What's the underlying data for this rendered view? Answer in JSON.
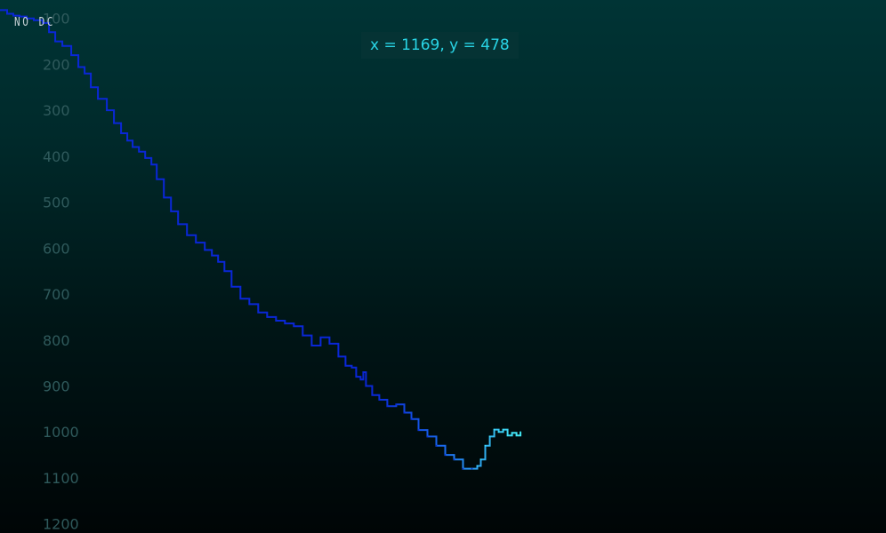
{
  "indicator": {
    "label": "NO DC"
  },
  "readout": {
    "text": "x = 1169, y = 478"
  },
  "colors": {
    "line_start": "#0a27d8",
    "line_mid": "#1a6cf0",
    "line_end": "#42e6f2",
    "tick_text": "#2f5a5c"
  },
  "chart_data": {
    "type": "line",
    "y_axis_reversed": true,
    "ylim": [
      1220,
      60
    ],
    "xlim": [
      0,
      1990
    ],
    "yticks": [
      100,
      200,
      300,
      400,
      500,
      600,
      700,
      800,
      900,
      1000,
      1100,
      1200
    ],
    "series": [
      {
        "x": [
          0,
          16,
          30,
          44,
          60,
          76,
          96,
          110,
          124,
          140,
          160,
          176,
          190,
          204,
          220,
          240,
          256,
          272,
          286,
          298,
          312,
          326,
          340,
          352,
          368,
          384,
          400,
          420,
          440,
          460,
          476,
          490,
          504,
          520,
          540,
          560,
          580,
          600,
          620,
          640,
          660,
          680,
          700,
          720,
          740,
          760,
          776,
          790,
          800,
          810,
          816,
          822,
          836,
          852,
          870,
          890,
          908,
          924,
          940,
          960,
          980,
          1000,
          1020,
          1040,
          1060,
          1072,
          1080,
          1090,
          1100,
          1110,
          1120,
          1130,
          1140,
          1150,
          1160,
          1169
        ],
        "y": [
          82,
          90,
          94,
          96,
          100,
          104,
          110,
          130,
          150,
          160,
          180,
          206,
          220,
          250,
          275,
          300,
          328,
          350,
          366,
          380,
          390,
          404,
          418,
          450,
          490,
          520,
          548,
          572,
          588,
          604,
          616,
          630,
          650,
          684,
          710,
          722,
          740,
          750,
          758,
          764,
          770,
          790,
          812,
          794,
          808,
          836,
          856,
          860,
          880,
          886,
          870,
          900,
          920,
          930,
          944,
          940,
          958,
          972,
          996,
          1010,
          1030,
          1050,
          1060,
          1080,
          1080,
          1074,
          1060,
          1030,
          1010,
          995,
          1000,
          995,
          1008,
          1002,
          1008,
          1000
        ]
      }
    ]
  }
}
